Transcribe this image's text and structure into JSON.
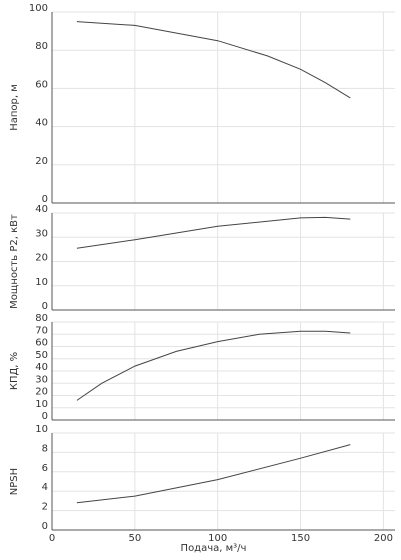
{
  "chart_data": [
    {
      "type": "line",
      "ylabel": "Напор, м",
      "color": "#444444",
      "grid": true,
      "x": [
        15,
        50,
        100,
        130,
        150,
        165,
        180
      ],
      "values": [
        95,
        93,
        85,
        77,
        70,
        63,
        55
      ],
      "xlim": [
        0,
        207
      ],
      "ylim": [
        0,
        100
      ],
      "yticks": [
        0,
        20,
        40,
        60,
        80,
        100
      ]
    },
    {
      "type": "line",
      "ylabel": "Мощность P2, кВт",
      "color": "#444444",
      "grid": true,
      "x": [
        15,
        50,
        100,
        150,
        165,
        180
      ],
      "values": [
        25.5,
        29,
        34.5,
        38,
        38.2,
        37.5
      ],
      "xlim": [
        0,
        207
      ],
      "ylim": [
        0,
        40
      ],
      "yticks": [
        0,
        10,
        20,
        30,
        40
      ]
    },
    {
      "type": "line",
      "ylabel": "КПД, %",
      "color": "#444444",
      "grid": true,
      "x": [
        15,
        30,
        50,
        75,
        100,
        125,
        150,
        165,
        180
      ],
      "values": [
        16,
        30,
        44,
        56,
        64,
        70,
        72.5,
        72.5,
        71
      ],
      "xlim": [
        0,
        207
      ],
      "ylim": [
        0,
        80
      ],
      "yticks": [
        0,
        10,
        20,
        30,
        40,
        50,
        60,
        70,
        80
      ]
    },
    {
      "type": "line",
      "ylabel": "NPSH",
      "xlabel": "Подача, м³/ч",
      "color": "#444444",
      "grid": true,
      "x": [
        15,
        50,
        100,
        150,
        180
      ],
      "values": [
        2.8,
        3.5,
        5.2,
        7.4,
        8.8
      ],
      "xlim": [
        0,
        207
      ],
      "ylim": [
        0,
        10
      ],
      "yticks": [
        0,
        2,
        4,
        6,
        8,
        10
      ],
      "xticks": [
        0,
        50,
        100,
        150,
        200
      ]
    }
  ]
}
